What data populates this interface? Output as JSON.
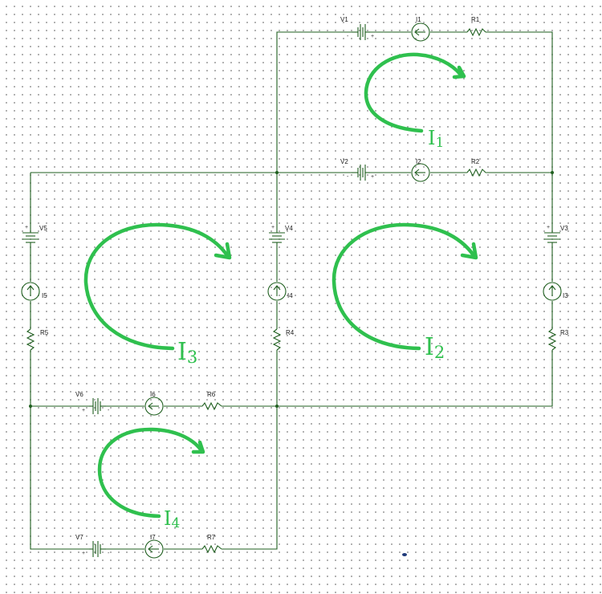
{
  "components": {
    "V1": "V1",
    "V2": "V2",
    "V3": "V3",
    "V4": "V4",
    "V5": "V5",
    "V6": "V6",
    "V7": "V7",
    "I1": "I1",
    "I2": "I2",
    "I3": "I3",
    "I4": "I4",
    "I5": "I5",
    "I6": "I6",
    "I7": "I7",
    "R1": "R1",
    "R2": "R2",
    "R3": "R3",
    "R4": "R4",
    "R5": "R5",
    "R6": "R6",
    "R7": "R7"
  },
  "loops": {
    "I1": {
      "main": "I",
      "sub": "1"
    },
    "I2": {
      "main": "I",
      "sub": "2"
    },
    "I3": {
      "main": "I",
      "sub": "3"
    },
    "I4": {
      "main": "I",
      "sub": "4"
    }
  },
  "polarity": {
    "plus": "+",
    "minus": "-"
  },
  "colors": {
    "wire": "#1f5f1f",
    "loop_arrow": "#2fc04e",
    "grid_dot": "#8e8e8e"
  }
}
